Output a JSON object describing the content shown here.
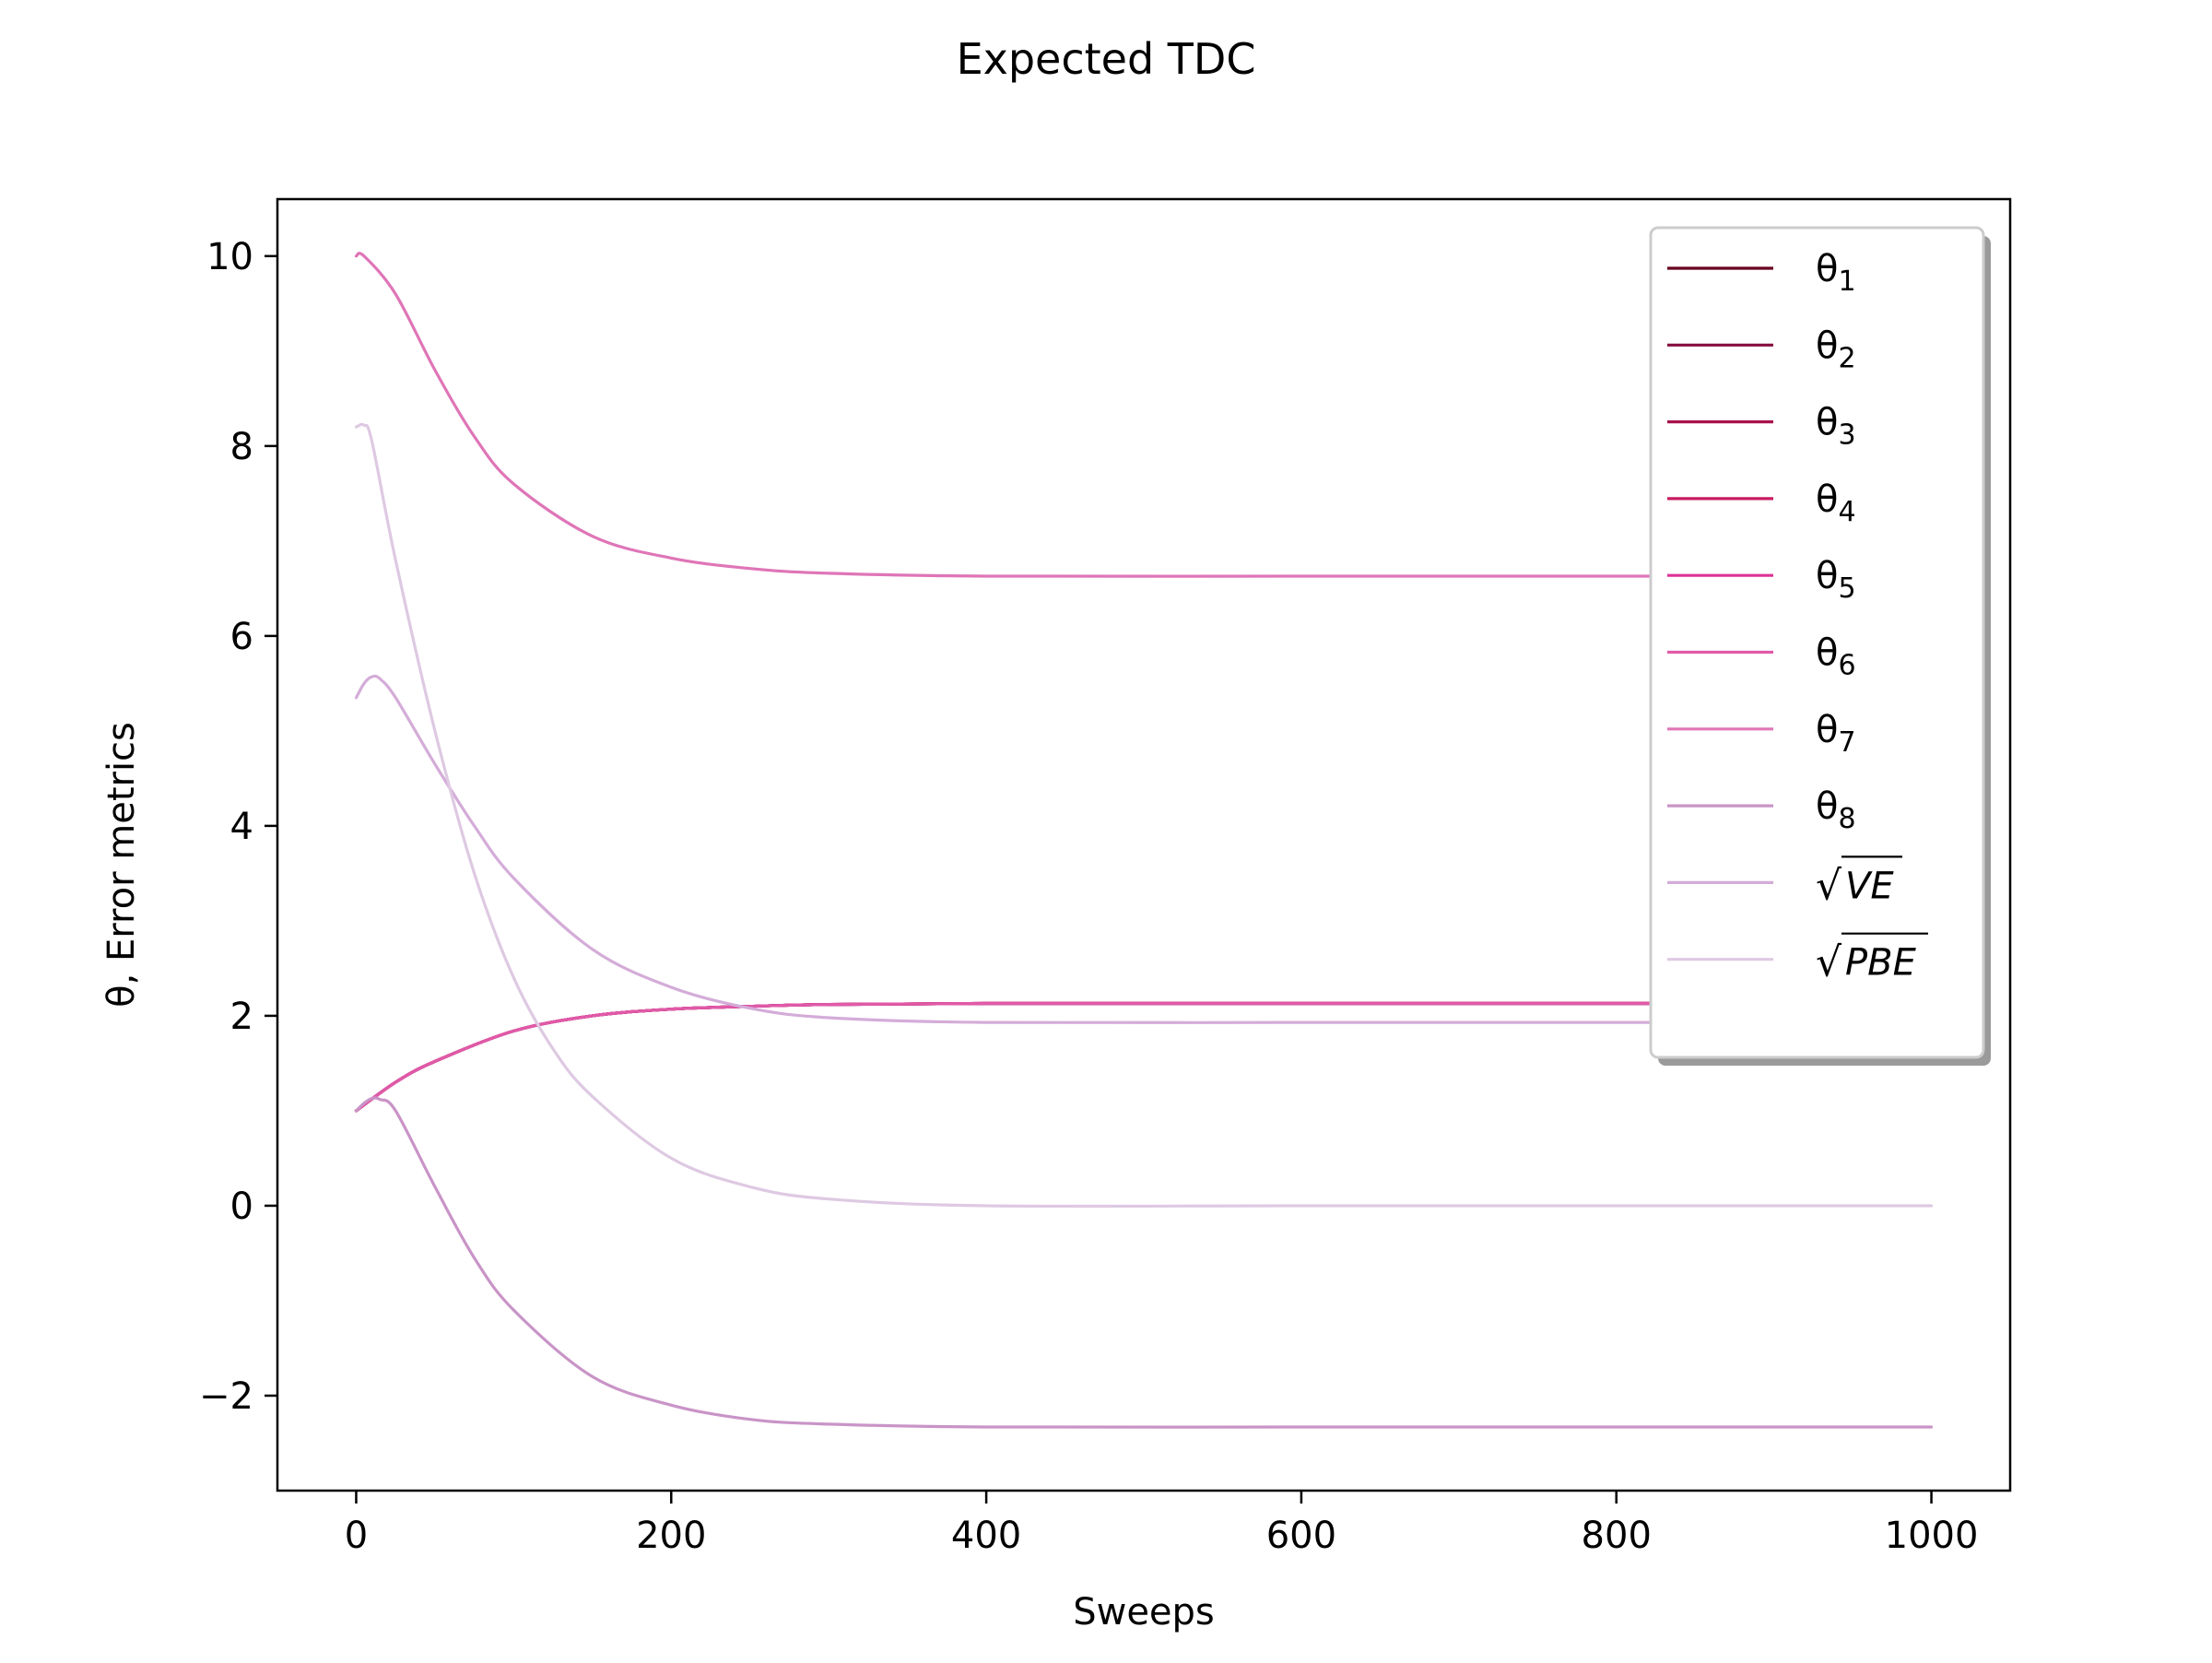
{
  "chart_data": {
    "type": "line",
    "title": "Expected TDC",
    "xlabel": "Sweeps",
    "ylabel": "θ, Error metrics",
    "xlim": [
      -50,
      1050
    ],
    "ylim": [
      -3.0,
      10.6
    ],
    "xticks": [
      0,
      200,
      400,
      600,
      800,
      1000
    ],
    "xtick_labels": [
      "0",
      "200",
      "400",
      "600",
      "800",
      "1000"
    ],
    "yticks": [
      -2,
      0,
      2,
      4,
      6,
      8,
      10
    ],
    "ytick_labels": [
      "−2",
      "0",
      "2",
      "4",
      "6",
      "8",
      "10"
    ],
    "grid": false,
    "legend_position": "upper right",
    "series": [
      {
        "name": "θ1",
        "color": "#67001f",
        "x": [
          0,
          25,
          50,
          100,
          150,
          200,
          250,
          300,
          400,
          600,
          800,
          1000
        ],
        "y": [
          1.0,
          1.3,
          1.52,
          1.84,
          2.0,
          2.07,
          2.1,
          2.12,
          2.13,
          2.13,
          2.13,
          2.13
        ]
      },
      {
        "name": "θ2",
        "color": "#860d3f",
        "x": [
          0,
          25,
          50,
          100,
          150,
          200,
          250,
          300,
          400,
          600,
          800,
          1000
        ],
        "y": [
          1.0,
          1.3,
          1.52,
          1.84,
          2.0,
          2.07,
          2.1,
          2.12,
          2.13,
          2.13,
          2.13,
          2.13
        ]
      },
      {
        "name": "θ3",
        "color": "#a8124c",
        "x": [
          0,
          25,
          50,
          100,
          150,
          200,
          250,
          300,
          400,
          600,
          800,
          1000
        ],
        "y": [
          1.0,
          1.3,
          1.52,
          1.84,
          2.0,
          2.07,
          2.1,
          2.12,
          2.13,
          2.13,
          2.13,
          2.13
        ]
      },
      {
        "name": "θ4",
        "color": "#c81b61",
        "x": [
          0,
          25,
          50,
          100,
          150,
          200,
          250,
          300,
          400,
          600,
          800,
          1000
        ],
        "y": [
          1.0,
          1.3,
          1.52,
          1.84,
          2.0,
          2.07,
          2.1,
          2.12,
          2.13,
          2.13,
          2.13,
          2.13
        ]
      },
      {
        "name": "θ5",
        "color": "#dd3497",
        "x": [
          0,
          25,
          50,
          100,
          150,
          200,
          250,
          300,
          400,
          600,
          800,
          1000
        ],
        "y": [
          1.0,
          1.3,
          1.52,
          1.84,
          2.0,
          2.07,
          2.1,
          2.12,
          2.13,
          2.13,
          2.13,
          2.13
        ]
      },
      {
        "name": "θ6",
        "color": "#e05aa8",
        "x": [
          0,
          25,
          50,
          100,
          150,
          200,
          250,
          300,
          400,
          600,
          800,
          1000
        ],
        "y": [
          1.0,
          1.3,
          1.52,
          1.84,
          2.0,
          2.07,
          2.1,
          2.12,
          2.13,
          2.13,
          2.13,
          2.13
        ]
      },
      {
        "name": "θ7",
        "color": "#df75b7",
        "x": [
          0,
          5,
          25,
          50,
          75,
          100,
          150,
          200,
          250,
          300,
          400,
          600,
          800,
          1000
        ],
        "y": [
          10.0,
          10.0,
          9.6,
          8.8,
          8.1,
          7.6,
          7.05,
          6.82,
          6.71,
          6.66,
          6.63,
          6.63,
          6.63,
          6.63
        ]
      },
      {
        "name": "θ8",
        "color": "#c994c7",
        "x": [
          0,
          5,
          10,
          15,
          25,
          50,
          75,
          100,
          150,
          200,
          250,
          300,
          400,
          600,
          800,
          1000
        ],
        "y": [
          1.0,
          1.08,
          1.13,
          1.12,
          1.0,
          0.2,
          -0.55,
          -1.1,
          -1.8,
          -2.1,
          -2.25,
          -2.3,
          -2.33,
          -2.33,
          -2.33,
          -2.33
        ]
      },
      {
        "name": "√VE",
        "color": "#d4acd8",
        "x": [
          0,
          5,
          10,
          15,
          25,
          50,
          75,
          100,
          150,
          200,
          250,
          300,
          400,
          600,
          800,
          1000
        ],
        "y": [
          5.35,
          5.5,
          5.57,
          5.55,
          5.35,
          4.65,
          4.0,
          3.45,
          2.7,
          2.3,
          2.08,
          1.98,
          1.93,
          1.93,
          1.93,
          1.93
        ]
      },
      {
        "name": "√PBE",
        "color": "#dec9e2",
        "x": [
          0,
          5,
          10,
          25,
          50,
          75,
          100,
          125,
          150,
          200,
          250,
          300,
          400,
          600,
          800,
          1000
        ],
        "y": [
          8.2,
          8.22,
          8.05,
          6.8,
          5.0,
          3.5,
          2.4,
          1.65,
          1.15,
          0.5,
          0.2,
          0.07,
          0.0,
          0.0,
          0.0,
          0.0
        ]
      }
    ]
  }
}
